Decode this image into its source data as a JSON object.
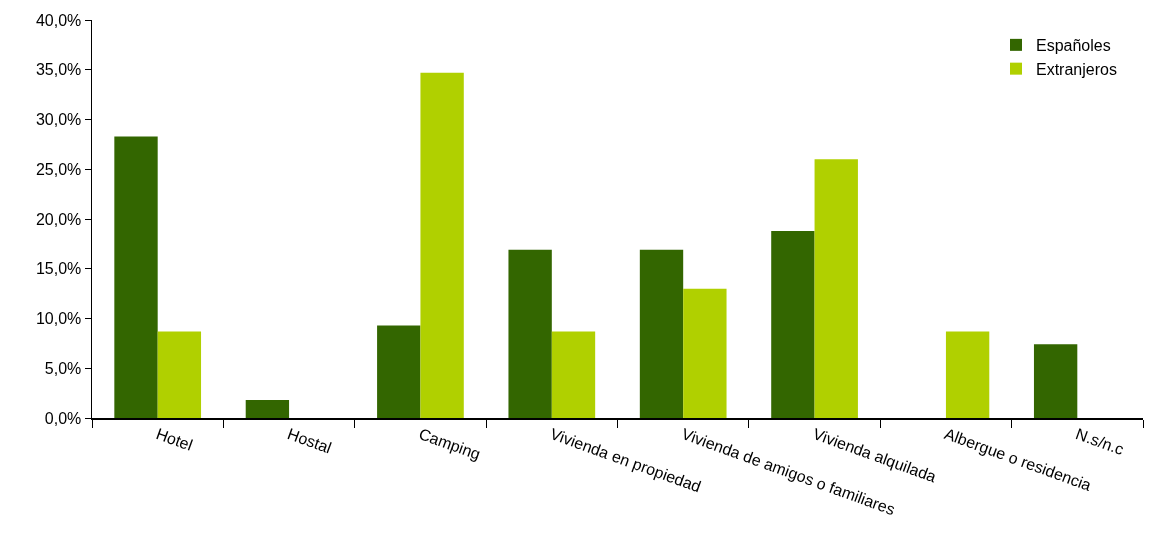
{
  "chart_data": {
    "type": "bar",
    "categories": [
      "Hotel",
      "Hostal",
      "Camping",
      "Vivienda en propiedad",
      "Vivienda de amigos o familiares",
      "Vivienda alquilada",
      "Albergue o residencia",
      "N.s/n.c"
    ],
    "series": [
      {
        "name": "Españoles",
        "color": "#336600",
        "values": [
          28.3,
          1.8,
          9.3,
          16.9,
          16.9,
          18.8,
          0,
          7.4
        ]
      },
      {
        "name": "Extranjeros",
        "color": "#b0d000",
        "values": [
          8.7,
          0,
          34.7,
          8.7,
          13.0,
          26.0,
          8.7,
          0
        ]
      }
    ],
    "ylim": [
      0,
      40
    ],
    "yticks": [
      {
        "value": 0,
        "label": "0,0%"
      },
      {
        "value": 5,
        "label": "5,0%"
      },
      {
        "value": 10,
        "label": "10,0%"
      },
      {
        "value": 15,
        "label": "15,0%"
      },
      {
        "value": 20,
        "label": "20,0%"
      },
      {
        "value": 25,
        "label": "25,0%"
      },
      {
        "value": 30,
        "label": "30,0%"
      },
      {
        "value": 35,
        "label": "35,0%"
      },
      {
        "value": 40,
        "label": "40,0%"
      }
    ],
    "grid": false,
    "legend": "top right"
  }
}
